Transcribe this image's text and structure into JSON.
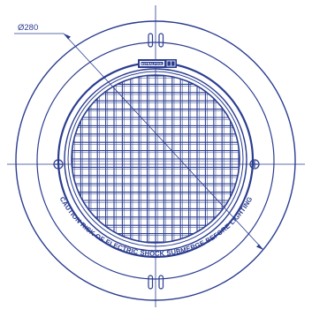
{
  "dimension": {
    "label": "Ø280"
  },
  "warning": {
    "text": "CAUTION RISK OF ELECTRIC SHOCK SUBMERGE BEFORE LIGHTING"
  },
  "badge": {
    "text": "ASTRALPOOL"
  },
  "colors": {
    "line": "#2b3d8f",
    "background": "#ffffff"
  },
  "icons": {
    "screw": "screw-slot-icon",
    "vent": "vent-slot-icon"
  }
}
